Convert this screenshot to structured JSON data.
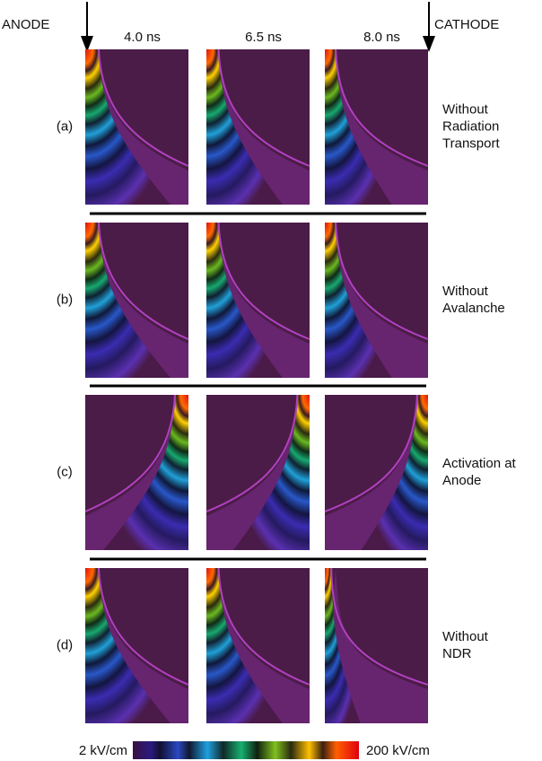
{
  "header": {
    "anode": "ANODE",
    "cathode": "CATHODE",
    "columns": [
      "4.0 ns",
      "6.5 ns",
      "8.0 ns"
    ]
  },
  "rows": [
    {
      "label": "(a)",
      "description": [
        "Without",
        "Radiation",
        "Transport"
      ]
    },
    {
      "label": "(b)",
      "description": [
        "Without",
        "Avalanche"
      ]
    },
    {
      "label": "(c)",
      "description": [
        "Activation at",
        "Anode"
      ]
    },
    {
      "label": "(d)",
      "description": [
        "Without",
        "NDR"
      ]
    }
  ],
  "colorbar": {
    "min_label": "2 kV/cm",
    "max_label": "200 kV/cm"
  }
}
